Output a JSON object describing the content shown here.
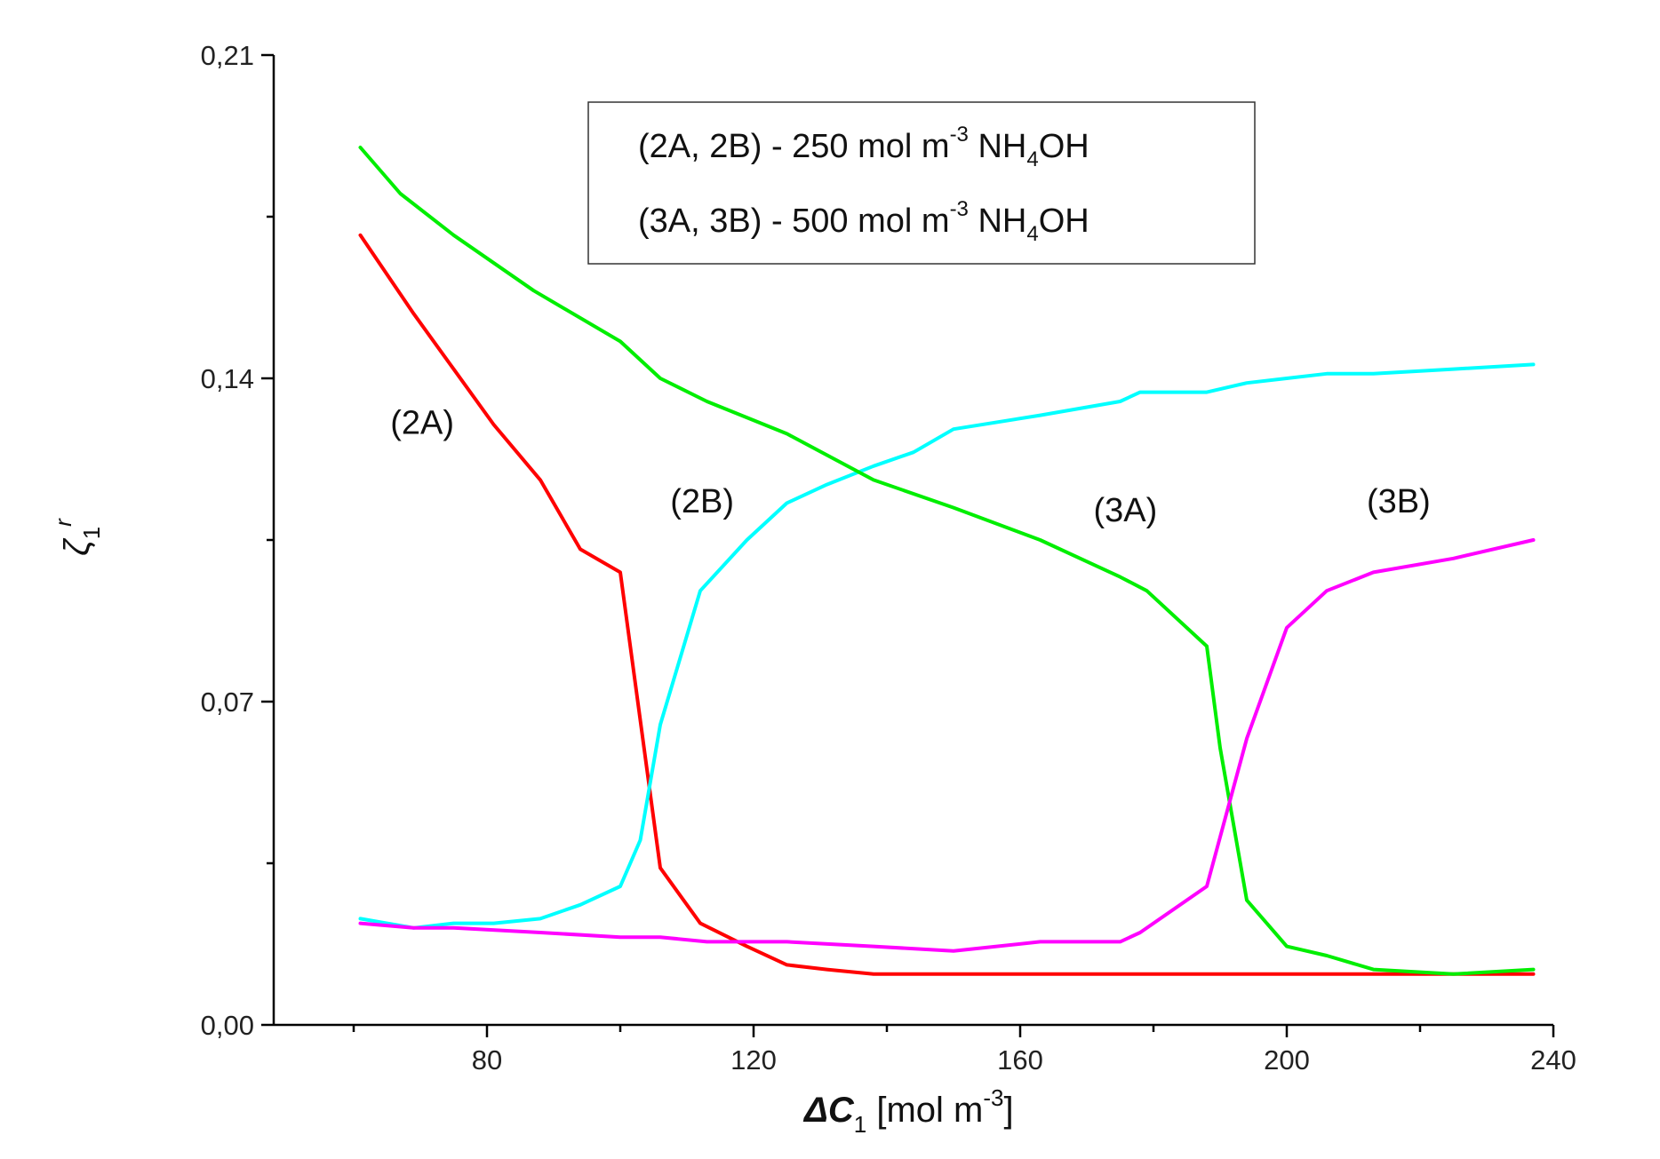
{
  "chart_data": {
    "type": "line",
    "xlabel": {
      "symbol": "ΔC",
      "sub": "1",
      "unit": " [mol m",
      "unit_sup": "-3",
      "unit_end": "]"
    },
    "ylabel": {
      "symbol": "ζ",
      "sub": "1",
      "sup": "r"
    },
    "xlim": [
      48,
      240
    ],
    "ylim": [
      0,
      0.21
    ],
    "x_ticks": [
      {
        "value": 80,
        "label": "80"
      },
      {
        "value": 120,
        "label": "120"
      },
      {
        "value": 160,
        "label": "160"
      },
      {
        "value": 200,
        "label": "200"
      },
      {
        "value": 240,
        "label": "240"
      }
    ],
    "x_minor_ticks": [
      60,
      100,
      140,
      180,
      220
    ],
    "y_ticks": [
      {
        "value": 0.0,
        "label": "0,00"
      },
      {
        "value": 0.07,
        "label": "0,07"
      },
      {
        "value": 0.14,
        "label": "0,14"
      },
      {
        "value": 0.21,
        "label": "0,21"
      }
    ],
    "y_minor_ticks": [
      0.035,
      0.105,
      0.175
    ],
    "legend": {
      "position": "top-center",
      "entries": [
        {
          "prefix": "(2A, 2B) - 250 mol m",
          "sup": "-3",
          "mid": " NH",
          "sub": "4",
          "suffix": "OH"
        },
        {
          "prefix": "(3A, 3B) - 500 mol m",
          "sup": "-3",
          "mid": " NH",
          "sub": "4",
          "suffix": "OH"
        }
      ]
    },
    "series": [
      {
        "label": "(2A)",
        "color": "#ff0000",
        "x": [
          61,
          69,
          75,
          81,
          88,
          94,
          100,
          106,
          112,
          119,
          125,
          131,
          138,
          150,
          163,
          175,
          188,
          200,
          213,
          225,
          237
        ],
        "y": [
          0.171,
          0.154,
          0.142,
          0.13,
          0.118,
          0.103,
          0.098,
          0.034,
          0.022,
          0.017,
          0.013,
          0.012,
          0.011,
          0.011,
          0.011,
          0.011,
          0.011,
          0.011,
          0.011,
          0.011,
          0.011
        ],
        "label_at": [
          65.5,
          0.128
        ]
      },
      {
        "label": "(2B)",
        "color": "#00ffff",
        "x": [
          61,
          69,
          75,
          81,
          88,
          94,
          100,
          103,
          106,
          112,
          119,
          125,
          131,
          138,
          144,
          150,
          163,
          175,
          178,
          188,
          194,
          200,
          206,
          213,
          225,
          237
        ],
        "y": [
          0.023,
          0.021,
          0.022,
          0.022,
          0.023,
          0.026,
          0.03,
          0.04,
          0.065,
          0.094,
          0.105,
          0.113,
          0.117,
          0.121,
          0.124,
          0.129,
          0.132,
          0.135,
          0.137,
          0.137,
          0.139,
          0.14,
          0.141,
          0.141,
          0.142,
          0.143
        ],
        "label_at": [
          107.5,
          0.111
        ]
      },
      {
        "label": "(3A)",
        "color": "#00ee00",
        "x": [
          61,
          67,
          75,
          87,
          100,
          106,
          113,
          125,
          138,
          150,
          163,
          175,
          179,
          188,
          190,
          194,
          200,
          206,
          213,
          225,
          237
        ],
        "y": [
          0.19,
          0.18,
          0.171,
          0.159,
          0.148,
          0.14,
          0.135,
          0.128,
          0.118,
          0.112,
          0.105,
          0.097,
          0.094,
          0.082,
          0.06,
          0.027,
          0.017,
          0.015,
          0.012,
          0.011,
          0.012
        ],
        "label_at": [
          171,
          0.109
        ]
      },
      {
        "label": "(3B)",
        "color": "#ff00ff",
        "x": [
          61,
          69,
          75,
          88,
          100,
          106,
          113,
          125,
          138,
          150,
          163,
          175,
          178,
          188,
          194,
          200,
          206,
          213,
          225,
          237
        ],
        "y": [
          0.022,
          0.021,
          0.021,
          0.02,
          0.019,
          0.019,
          0.018,
          0.018,
          0.017,
          0.016,
          0.018,
          0.018,
          0.02,
          0.03,
          0.062,
          0.086,
          0.094,
          0.098,
          0.101,
          0.105
        ],
        "label_at": [
          212,
          0.111
        ]
      }
    ]
  }
}
